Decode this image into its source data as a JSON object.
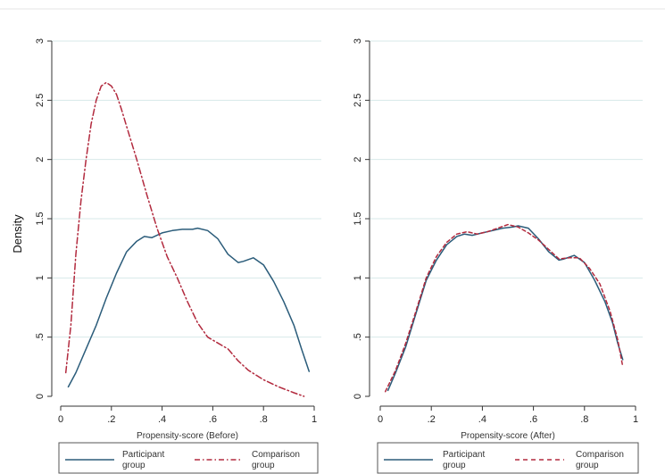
{
  "chart_data": [
    {
      "type": "line",
      "xlabel": "Propensity-score (Before)",
      "ylabel": "Density",
      "xlim": [
        0,
        1
      ],
      "ylim": [
        0,
        3
      ],
      "xticks": [
        0,
        0.2,
        0.4,
        0.6,
        0.8,
        1
      ],
      "xticklabels": [
        "0",
        ".2",
        ".4",
        ".6",
        ".8",
        "1"
      ],
      "yticks": [
        0,
        0.5,
        1,
        1.5,
        2,
        2.5,
        3
      ],
      "yticklabels": [
        "0",
        ".5",
        "1",
        "1.5",
        "2",
        "2.5",
        "3"
      ],
      "grid": true,
      "legend": "bottom",
      "series": [
        {
          "name": "Participant group",
          "color": "#2b5c7a",
          "style": "solid",
          "x": [
            0.03,
            0.06,
            0.1,
            0.14,
            0.18,
            0.22,
            0.26,
            0.3,
            0.33,
            0.36,
            0.4,
            0.44,
            0.48,
            0.52,
            0.54,
            0.58,
            0.62,
            0.66,
            0.7,
            0.72,
            0.76,
            0.8,
            0.84,
            0.88,
            0.92,
            0.95,
            0.98
          ],
          "y": [
            0.08,
            0.2,
            0.4,
            0.6,
            0.83,
            1.04,
            1.22,
            1.31,
            1.35,
            1.34,
            1.38,
            1.4,
            1.41,
            1.41,
            1.42,
            1.4,
            1.33,
            1.2,
            1.13,
            1.14,
            1.17,
            1.11,
            0.97,
            0.8,
            0.6,
            0.4,
            0.21
          ]
        },
        {
          "name": "Comparison group",
          "color": "#b22a3e",
          "style": "dashdot",
          "x": [
            0.02,
            0.04,
            0.06,
            0.08,
            0.1,
            0.12,
            0.14,
            0.16,
            0.18,
            0.2,
            0.22,
            0.24,
            0.26,
            0.3,
            0.34,
            0.38,
            0.42,
            0.46,
            0.5,
            0.54,
            0.58,
            0.62,
            0.66,
            0.7,
            0.74,
            0.8,
            0.86,
            0.92,
            0.96
          ],
          "y": [
            0.2,
            0.6,
            1.2,
            1.65,
            2.0,
            2.3,
            2.5,
            2.62,
            2.65,
            2.62,
            2.55,
            2.42,
            2.28,
            2.0,
            1.7,
            1.42,
            1.18,
            1.0,
            0.8,
            0.62,
            0.5,
            0.45,
            0.4,
            0.3,
            0.22,
            0.14,
            0.08,
            0.03,
            0.0
          ]
        }
      ]
    },
    {
      "type": "line",
      "xlabel": "Propensity-score (After)",
      "ylabel": "",
      "xlim": [
        0,
        1
      ],
      "ylim": [
        0,
        3
      ],
      "xticks": [
        0,
        0.2,
        0.4,
        0.6,
        0.8,
        1
      ],
      "xticklabels": [
        "0",
        ".2",
        ".4",
        ".6",
        ".8",
        "1"
      ],
      "yticks": [
        0,
        0.5,
        1,
        1.5,
        2,
        2.5,
        3
      ],
      "yticklabels": [
        "0",
        ".5",
        "1",
        "1.5",
        "2",
        "2.5",
        "3"
      ],
      "grid": true,
      "legend": "bottom",
      "series": [
        {
          "name": "Participant group",
          "color": "#2b5c7a",
          "style": "solid",
          "x": [
            0.03,
            0.06,
            0.1,
            0.14,
            0.18,
            0.22,
            0.26,
            0.3,
            0.33,
            0.36,
            0.4,
            0.44,
            0.48,
            0.52,
            0.54,
            0.58,
            0.62,
            0.66,
            0.7,
            0.72,
            0.76,
            0.8,
            0.84,
            0.88,
            0.91,
            0.93,
            0.95
          ],
          "y": [
            0.05,
            0.2,
            0.42,
            0.7,
            0.98,
            1.15,
            1.28,
            1.35,
            1.37,
            1.36,
            1.38,
            1.4,
            1.42,
            1.43,
            1.44,
            1.42,
            1.33,
            1.22,
            1.15,
            1.16,
            1.19,
            1.13,
            0.98,
            0.8,
            0.62,
            0.45,
            0.31
          ]
        },
        {
          "name": "Comparison group",
          "color": "#b22a3e",
          "style": "dashed",
          "x": [
            0.02,
            0.06,
            0.1,
            0.14,
            0.18,
            0.22,
            0.26,
            0.3,
            0.34,
            0.38,
            0.42,
            0.46,
            0.5,
            0.54,
            0.58,
            0.62,
            0.66,
            0.7,
            0.74,
            0.78,
            0.82,
            0.86,
            0.9,
            0.93,
            0.95
          ],
          "y": [
            0.04,
            0.22,
            0.45,
            0.72,
            1.0,
            1.18,
            1.3,
            1.37,
            1.39,
            1.37,
            1.39,
            1.42,
            1.45,
            1.43,
            1.38,
            1.32,
            1.24,
            1.16,
            1.17,
            1.17,
            1.08,
            0.95,
            0.72,
            0.48,
            0.25
          ]
        }
      ]
    }
  ]
}
